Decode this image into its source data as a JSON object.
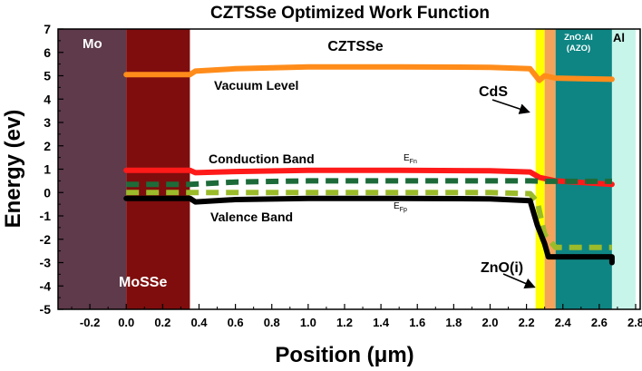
{
  "chart_data": {
    "type": "line",
    "title": "CZTSSe Optimized Work Function",
    "xlabel": "Position (μm)",
    "ylabel": "Energy (ev)",
    "xlim": [
      -0.375,
      2.825
    ],
    "ylim": [
      -5,
      7
    ],
    "xticks": [
      "-0.2",
      "0.0",
      "0.2",
      "0.4",
      "0.6",
      "0.8",
      "1.0",
      "1.2",
      "1.4",
      "1.6",
      "1.8",
      "2.0",
      "2.2",
      "2.4",
      "2.6",
      "2.8"
    ],
    "yticks": [
      "-5",
      "-4",
      "-3",
      "-2",
      "-1",
      "0",
      "1",
      "2",
      "3",
      "4",
      "5",
      "6",
      "7"
    ],
    "grid": false,
    "regions": [
      {
        "label": "Mo",
        "x0": -0.375,
        "x1": 0.0,
        "color": "#5e3a4a"
      },
      {
        "label": "MoSSe",
        "x0": 0.0,
        "x1": 0.35,
        "color": "#7f0d0d"
      },
      {
        "label": "CZTSSe",
        "x0": 0.35,
        "x1": 2.25,
        "color": "#ffffff"
      },
      {
        "label": "CdS",
        "x0": 2.25,
        "x1": 2.3,
        "color": "#ffff00"
      },
      {
        "label": "ZnO(i)",
        "x0": 2.3,
        "x1": 2.36,
        "color": "#f5a35a"
      },
      {
        "label": "ZnO:Al\n(AZO)",
        "x0": 2.36,
        "x1": 2.67,
        "color": "#0e8583"
      },
      {
        "label": "Al",
        "x0": 2.67,
        "x1": 2.8,
        "color": "#c8f5ea"
      }
    ],
    "series": [
      {
        "name": "Vacuum Level",
        "color": "#ff8c1a",
        "dash": "solid",
        "points": [
          [
            0,
            5.05
          ],
          [
            0.35,
            5.05
          ],
          [
            0.38,
            5.2
          ],
          [
            0.6,
            5.3
          ],
          [
            1.0,
            5.38
          ],
          [
            1.5,
            5.38
          ],
          [
            2.0,
            5.36
          ],
          [
            2.22,
            5.3
          ],
          [
            2.27,
            4.8
          ],
          [
            2.3,
            5.0
          ],
          [
            2.36,
            4.9
          ],
          [
            2.67,
            4.85
          ]
        ]
      },
      {
        "name": "Conduction Band",
        "color": "#ff1a1a",
        "dash": "solid",
        "points": [
          [
            0,
            0.95
          ],
          [
            0.35,
            0.95
          ],
          [
            0.38,
            0.85
          ],
          [
            0.6,
            0.9
          ],
          [
            1.0,
            0.95
          ],
          [
            1.5,
            0.95
          ],
          [
            2.0,
            0.93
          ],
          [
            2.22,
            0.88
          ],
          [
            2.27,
            0.65
          ],
          [
            2.3,
            0.6
          ],
          [
            2.36,
            0.5
          ],
          [
            2.67,
            0.35
          ]
        ]
      },
      {
        "name": "EFn",
        "color": "#1e6b3a",
        "dash": "dashed",
        "points": [
          [
            0,
            0.35
          ],
          [
            0.35,
            0.35
          ],
          [
            0.6,
            0.45
          ],
          [
            1.0,
            0.5
          ],
          [
            1.5,
            0.5
          ],
          [
            2.0,
            0.5
          ],
          [
            2.22,
            0.5
          ],
          [
            2.3,
            0.48
          ],
          [
            2.67,
            0.48
          ]
        ]
      },
      {
        "name": "EFp",
        "color": "#9bbb2a",
        "dash": "dashed",
        "points": [
          [
            0,
            0.0
          ],
          [
            0.35,
            0.0
          ],
          [
            0.6,
            0.0
          ],
          [
            1.0,
            0.0
          ],
          [
            1.5,
            0.0
          ],
          [
            2.0,
            0.0
          ],
          [
            2.22,
            -0.05
          ],
          [
            2.26,
            -0.4
          ],
          [
            2.3,
            -1.8
          ],
          [
            2.36,
            -2.35
          ],
          [
            2.67,
            -2.35
          ]
        ]
      },
      {
        "name": "Valence Band",
        "color": "#000000",
        "dash": "solid",
        "points": [
          [
            0,
            -0.25
          ],
          [
            0.35,
            -0.25
          ],
          [
            0.38,
            -0.4
          ],
          [
            0.6,
            -0.3
          ],
          [
            1.0,
            -0.25
          ],
          [
            1.5,
            -0.25
          ],
          [
            2.0,
            -0.27
          ],
          [
            2.22,
            -0.35
          ],
          [
            2.26,
            -1.4
          ],
          [
            2.3,
            -2.2
          ],
          [
            2.32,
            -2.75
          ],
          [
            2.67,
            -2.75
          ],
          [
            2.67,
            -3.0
          ]
        ]
      }
    ],
    "annotations": [
      {
        "text": "Mo"
      },
      {
        "text": "MoSSe"
      },
      {
        "text": "CZTSSe"
      },
      {
        "text": "Vacuum Level"
      },
      {
        "text": "CdS"
      },
      {
        "text": "Conduction Band"
      },
      {
        "text": "Valence Band"
      },
      {
        "text": "E",
        "sub": "Fn"
      },
      {
        "text": "E",
        "sub": "Fp"
      },
      {
        "text": "ZnO:Al"
      },
      {
        "text": "(AZO)"
      },
      {
        "text": "Al"
      },
      {
        "text": "ZnO(i)"
      }
    ]
  }
}
